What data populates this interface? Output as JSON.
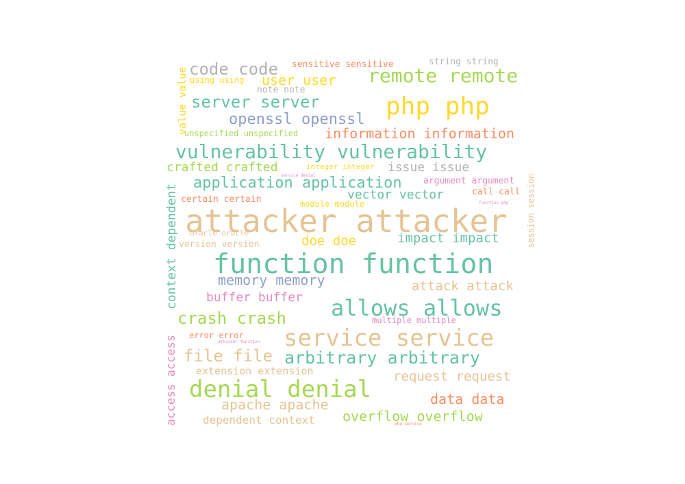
{
  "words": [
    {
      "text": "attacker attacker",
      "color": "#e5c494"
    },
    {
      "text": "function function",
      "color": "#66c2a5"
    },
    {
      "text": "service service",
      "color": "#e5c494"
    },
    {
      "text": "php php",
      "color": "#ffd92f"
    },
    {
      "text": "denial denial",
      "color": "#a6d854"
    },
    {
      "text": "allows allows",
      "color": "#66c2a5"
    },
    {
      "text": "vulnerability vulnerability",
      "color": "#66c2a5"
    },
    {
      "text": "remote remote",
      "color": "#a6d854"
    },
    {
      "text": "arbitrary arbitrary",
      "color": "#66c2a5"
    },
    {
      "text": "application application",
      "color": "#66c2a5"
    },
    {
      "text": "crash crash",
      "color": "#a6d854"
    },
    {
      "text": "file file",
      "color": "#e5c494"
    },
    {
      "text": "server server",
      "color": "#66c2a5"
    },
    {
      "text": "code code",
      "color": "#b3b3b3"
    },
    {
      "text": "openssl openssl",
      "color": "#8da0cb"
    },
    {
      "text": "information information",
      "color": "#fc8d62"
    },
    {
      "text": "memory memory",
      "color": "#8da0cb"
    },
    {
      "text": "user user",
      "color": "#ffd92f"
    },
    {
      "text": "overflow overflow",
      "color": "#a6d854"
    },
    {
      "text": "apache apache",
      "color": "#e5c494"
    },
    {
      "text": "data data",
      "color": "#fc8d62"
    },
    {
      "text": "buffer buffer",
      "color": "#e78ac3"
    },
    {
      "text": "attack attack",
      "color": "#e5c494"
    },
    {
      "text": "impact impact",
      "color": "#66c2a5"
    },
    {
      "text": "doe doe",
      "color": "#ffd92f"
    },
    {
      "text": "crafted crafted",
      "color": "#a6d854"
    },
    {
      "text": "request request",
      "color": "#e5c494"
    },
    {
      "text": "vector vector",
      "color": "#66c2a5"
    },
    {
      "text": "issue issue",
      "color": "#b3b3b3"
    },
    {
      "text": "dependent context",
      "color": "#e5c494"
    },
    {
      "text": "extension extension",
      "color": "#e5c494"
    },
    {
      "text": "context dependent",
      "color": "#66c2a5"
    },
    {
      "text": "access access",
      "color": "#e78ac3"
    },
    {
      "text": "value value",
      "color": "#ffd92f"
    },
    {
      "text": "argument argument",
      "color": "#e78ac3"
    },
    {
      "text": "certain certain",
      "color": "#fc8d62"
    },
    {
      "text": "sensitive sensitive",
      "color": "#fc8d62"
    },
    {
      "text": "string string",
      "color": "#b3b3b3"
    },
    {
      "text": "unspecified unspecified",
      "color": "#a6d854"
    },
    {
      "text": "version version",
      "color": "#e5c494"
    },
    {
      "text": "multiple multiple",
      "color": "#e78ac3"
    },
    {
      "text": "module module",
      "color": "#ffd92f"
    },
    {
      "text": "call call",
      "color": "#fc8d62"
    },
    {
      "text": "error error",
      "color": "#fc8d62"
    },
    {
      "text": "note note",
      "color": "#b3b3b3"
    },
    {
      "text": "using using",
      "color": "#ffd92f"
    },
    {
      "text": "integer integer",
      "color": "#ffd92f"
    },
    {
      "text": "oracle oracle",
      "color": "#e5c494"
    },
    {
      "text": "session session",
      "color": "#e5c494"
    },
    {
      "text": "function php",
      "color": "#e78ac3"
    },
    {
      "text": "service denial",
      "color": "#e78ac3"
    },
    {
      "text": "attacker function",
      "color": "#e78ac3"
    },
    {
      "text": "php service",
      "color": "#fc8d62"
    }
  ]
}
